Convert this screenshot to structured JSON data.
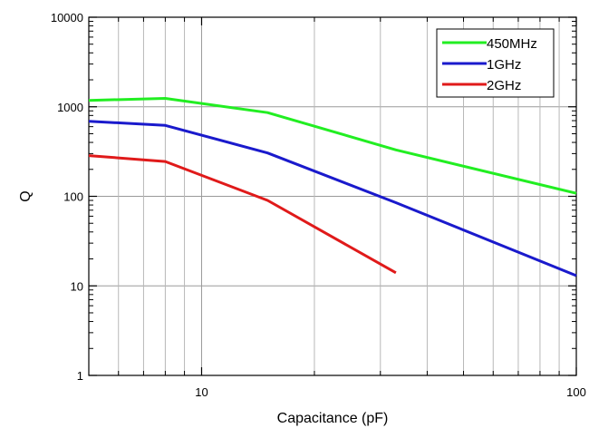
{
  "chart_data": {
    "type": "line",
    "x_scale": "log",
    "y_scale": "log",
    "xlabel": "Capacitance (pF)",
    "ylabel": "Q",
    "xlim": [
      5,
      100
    ],
    "ylim": [
      1,
      10000
    ],
    "x_tick_labels": [
      {
        "value": 10,
        "label": "10"
      },
      {
        "value": 100,
        "label": "100"
      }
    ],
    "y_tick_labels": [
      {
        "value": 1,
        "label": "1"
      },
      {
        "value": 10,
        "label": "10"
      },
      {
        "value": 100,
        "label": "100"
      },
      {
        "value": 1000,
        "label": "1000"
      },
      {
        "value": 10000,
        "label": "10000"
      }
    ],
    "grid": true,
    "legend_position": "top-right",
    "series": [
      {
        "name": "450MHz",
        "color": "#22ee22",
        "x": [
          5,
          8,
          15,
          33,
          100
        ],
        "y": [
          1180,
          1240,
          860,
          330,
          108
        ]
      },
      {
        "name": "1GHz",
        "color": "#1a1acc",
        "x": [
          5,
          8,
          15,
          33,
          100
        ],
        "y": [
          690,
          620,
          305,
          85,
          13
        ]
      },
      {
        "name": "2GHz",
        "color": "#e01a1a",
        "x": [
          5,
          8,
          15,
          33
        ],
        "y": [
          285,
          245,
          90,
          14
        ]
      }
    ]
  }
}
